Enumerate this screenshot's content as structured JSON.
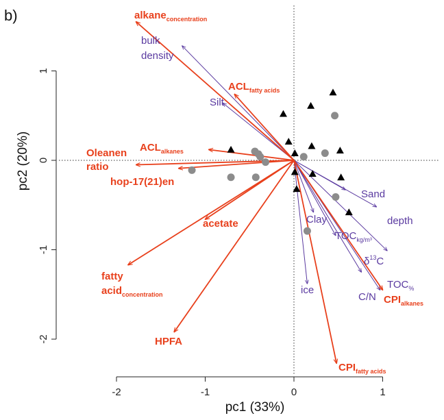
{
  "panel_label": "b)",
  "chart_data": {
    "type": "scatter",
    "title": "",
    "xlabel": "pc1 (33%)",
    "ylabel": "pc2 (20%)",
    "xlim": [
      -2.0,
      1.0
    ],
    "ylim": [
      -2.5,
      1.6
    ],
    "x_ticks": [
      {
        "value": -2,
        "label": "-2"
      },
      {
        "value": -1,
        "label": "-1"
      },
      {
        "value": 0,
        "label": "0"
      },
      {
        "value": 1,
        "label": "1"
      }
    ],
    "y_ticks": [
      {
        "value": 1,
        "label": "1"
      },
      {
        "value": 0,
        "label": "0"
      },
      {
        "value": -1,
        "label": "-1"
      },
      {
        "value": -2,
        "label": "-2"
      }
    ],
    "reference_lines": {
      "x": 0,
      "y": 0,
      "style": "dotted"
    },
    "colors": {
      "red": "#e8401c",
      "purple": "#5a3aa0",
      "circle": "#8c8c8c",
      "triangle": "#000000"
    },
    "points_circles": [
      {
        "x": -1.15,
        "y": -0.11
      },
      {
        "x": -0.71,
        "y": -0.19
      },
      {
        "x": -0.44,
        "y": 0.1
      },
      {
        "x": -0.4,
        "y": 0.07
      },
      {
        "x": -0.38,
        "y": 0.04
      },
      {
        "x": -0.32,
        "y": -0.02
      },
      {
        "x": -0.43,
        "y": -0.19
      },
      {
        "x": 0.11,
        "y": 0.04
      },
      {
        "x": 0.35,
        "y": 0.08
      },
      {
        "x": 0.46,
        "y": 0.5
      },
      {
        "x": 0.47,
        "y": -0.41
      },
      {
        "x": 0.15,
        "y": -0.79
      }
    ],
    "points_triangles": [
      {
        "x": -0.71,
        "y": 0.12
      },
      {
        "x": -0.12,
        "y": 0.52
      },
      {
        "x": 0.19,
        "y": 0.61
      },
      {
        "x": 0.44,
        "y": 0.76
      },
      {
        "x": 0.01,
        "y": 0.08
      },
      {
        "x": -0.06,
        "y": 0.21
      },
      {
        "x": 0.2,
        "y": 0.16
      },
      {
        "x": 0.52,
        "y": 0.11
      },
      {
        "x": 0.01,
        "y": -0.13
      },
      {
        "x": 0.21,
        "y": -0.15
      },
      {
        "x": 0.53,
        "y": -0.19
      },
      {
        "x": 0.03,
        "y": -0.32
      },
      {
        "x": 0.62,
        "y": -0.58
      }
    ],
    "loadings_red": [
      {
        "label": "alkane",
        "sub": "concentration",
        "x": -1.78,
        "y": 1.55
      },
      {
        "label": "ACL",
        "sub": "fatty acids",
        "x": -0.67,
        "y": 0.74
      },
      {
        "label": "ACL",
        "sub": "alkanes",
        "x": -0.96,
        "y": 0.12
      },
      {
        "label": "Oleanen",
        "sub": "",
        "x": -1.78,
        "y": -0.05
      },
      {
        "label": "hop-17(21)en",
        "sub": "",
        "x": -1.3,
        "y": -0.09
      },
      {
        "label": "acetate",
        "sub": "",
        "x": -1.0,
        "y": -0.66
      },
      {
        "label": "fatty",
        "sub": "",
        "x": -1.87,
        "y": -1.17
      },
      {
        "label": "HPFA",
        "sub": "",
        "x": -1.35,
        "y": -1.92
      },
      {
        "label": "CPI",
        "sub": "fatty acids",
        "x": 0.48,
        "y": -2.27
      },
      {
        "label": "CPI",
        "sub": "alkanes",
        "x": 1.0,
        "y": -1.45
      }
    ],
    "loadings_purple": [
      {
        "label": "bulk",
        "x": -1.26,
        "y": 1.28
      },
      {
        "label": "Silt",
        "x": -0.8,
        "y": 0.64
      },
      {
        "label": "Sand",
        "x": 0.93,
        "y": -0.52
      },
      {
        "label": "depth",
        "x": 0.58,
        "y": -0.33
      },
      {
        "label": "Clay",
        "x": 0.22,
        "y": -0.58
      },
      {
        "label": "TOC",
        "sub": "kg/m³",
        "x": 0.47,
        "y": -0.84
      },
      {
        "label": "δ¹³C",
        "x": 1.05,
        "y": -1.01
      },
      {
        "label": "TOC",
        "sub": "%",
        "x": 0.97,
        "y": -1.45
      },
      {
        "label": "C/N",
        "x": 0.76,
        "y": -1.25
      },
      {
        "label": "ice",
        "x": 0.15,
        "y": -1.38
      }
    ],
    "label_text": {
      "alkane_main": "alkane",
      "alkane_sub": "concentration",
      "acl_fa_main": "ACL",
      "acl_fa_sub": "fatty acids",
      "acl_alk_main": "ACL",
      "acl_alk_sub": "alkanes",
      "oleanen": "Oleanen",
      "ratio": "ratio",
      "hop": "hop-17(21)en",
      "acetate": "acetate",
      "fatty": "fatty",
      "acid_main": "acid",
      "acid_sub": "concentration",
      "hpfa": "HPFA",
      "cpi_fa_main": "CPI",
      "cpi_fa_sub": "fatty acids",
      "cpi_alk_main": "CPI",
      "cpi_alk_sub": "alkanes",
      "bulk": "bulk",
      "density": "density",
      "silt": "Silt",
      "sand": "Sand",
      "depth": "depth",
      "clay": "Clay",
      "tockg_main": "TOC",
      "tockg_sub": "kg/m³",
      "d13c_main": "δ",
      "d13c_sup": "13",
      "d13c_tail": "C",
      "tocpct_main": "TOC",
      "tocpct_sub": "%",
      "cn": "C/N",
      "ice": "ice"
    }
  }
}
